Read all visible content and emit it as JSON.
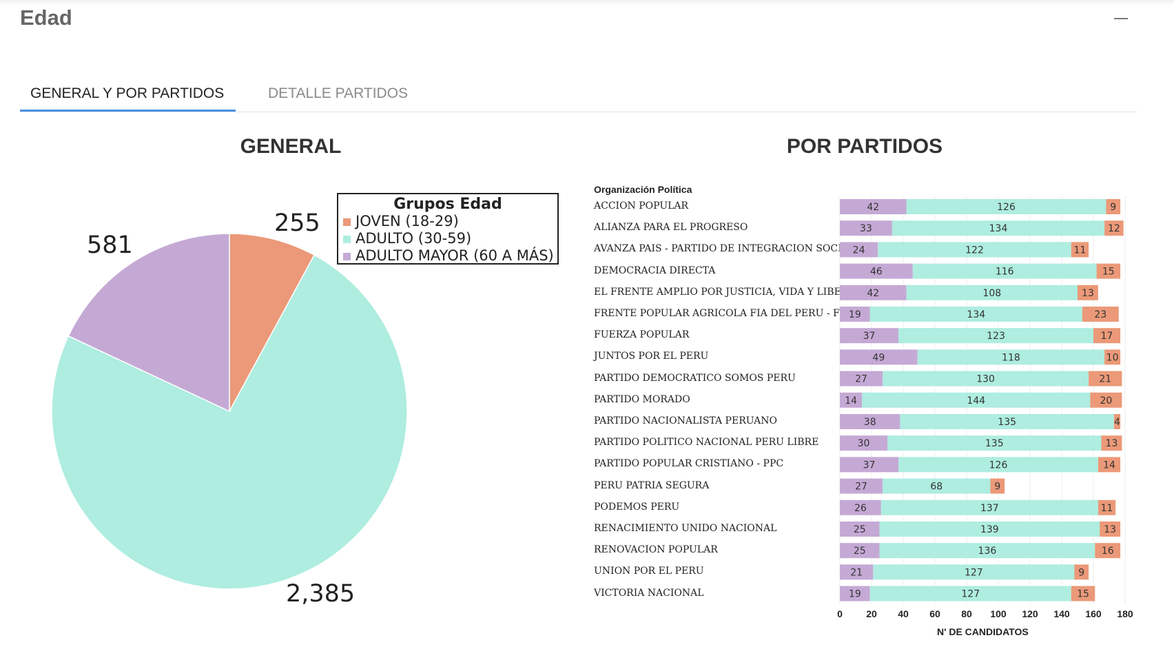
{
  "page": {
    "title": "Edad"
  },
  "tabs": [
    {
      "label": "GENERAL Y POR PARTIDOS",
      "active": true
    },
    {
      "label": "DETALLE PARTIDOS",
      "active": false
    }
  ],
  "colors": {
    "joven": "#eb9978",
    "adulto": "#aeede0",
    "mayor": "#c5a9d5",
    "tab_accent": "#4a90e2"
  },
  "general": {
    "title": "GENERAL",
    "legend_title": "Grupos Edad",
    "labels": {
      "joven": "255",
      "mayor": "581",
      "adulto": "2,385"
    }
  },
  "partidos": {
    "title": "POR PARTIDOS",
    "y_header": "Organización Política",
    "x_label": "N' DE CANDIDATOS"
  },
  "chart_data": [
    {
      "type": "pie",
      "title": "GENERAL",
      "legend_title": "Grupos Edad",
      "legend_position": "top-right",
      "slices": [
        {
          "name": "JOVEN (18-29)",
          "value": 255
        },
        {
          "name": "ADULTO (30-59)",
          "value": 2385
        },
        {
          "name": "ADULTO MAYOR (60 A MÁS)",
          "value": 581
        }
      ]
    },
    {
      "type": "bar",
      "orientation": "horizontal",
      "stacked": true,
      "title": "POR PARTIDOS",
      "ylabel": "Organización Política",
      "xlabel": "N' DE CANDIDATOS",
      "xlim": [
        0,
        180
      ],
      "xticks": [
        0,
        20,
        40,
        60,
        80,
        100,
        120,
        140,
        160,
        180
      ],
      "grid": true,
      "categories": [
        "ACCION POPULAR",
        "ALIANZA PARA EL PROGRESO",
        "AVANZA PAIS - PARTIDO DE INTEGRACION SOCIAL",
        "DEMOCRACIA DIRECTA",
        "EL FRENTE AMPLIO POR JUSTICIA, VIDA Y LIBERTAD",
        "FRENTE POPULAR AGRICOLA FIA DEL PERU - FREPAP",
        "FUERZA POPULAR",
        "JUNTOS POR EL PERU",
        "PARTIDO DEMOCRATICO SOMOS PERU",
        "PARTIDO MORADO",
        "PARTIDO NACIONALISTA PERUANO",
        "PARTIDO POLITICO NACIONAL PERU LIBRE",
        "PARTIDO POPULAR CRISTIANO - PPC",
        "PERU PATRIA SEGURA",
        "PODEMOS PERU",
        "RENACIMIENTO UNIDO NACIONAL",
        "RENOVACION POPULAR",
        "UNION POR EL PERU",
        "VICTORIA NACIONAL"
      ],
      "series": [
        {
          "key": "mayor",
          "values": [
            42,
            33,
            24,
            46,
            42,
            19,
            37,
            49,
            27,
            14,
            38,
            30,
            37,
            27,
            26,
            25,
            25,
            21,
            19
          ]
        },
        {
          "key": "adulto",
          "values": [
            126,
            134,
            122,
            116,
            108,
            134,
            123,
            118,
            130,
            144,
            135,
            135,
            126,
            68,
            137,
            139,
            136,
            127,
            127
          ]
        },
        {
          "key": "joven",
          "values": [
            9,
            12,
            11,
            15,
            13,
            23,
            17,
            10,
            21,
            20,
            4,
            13,
            14,
            9,
            11,
            13,
            16,
            9,
            15
          ]
        }
      ]
    }
  ]
}
